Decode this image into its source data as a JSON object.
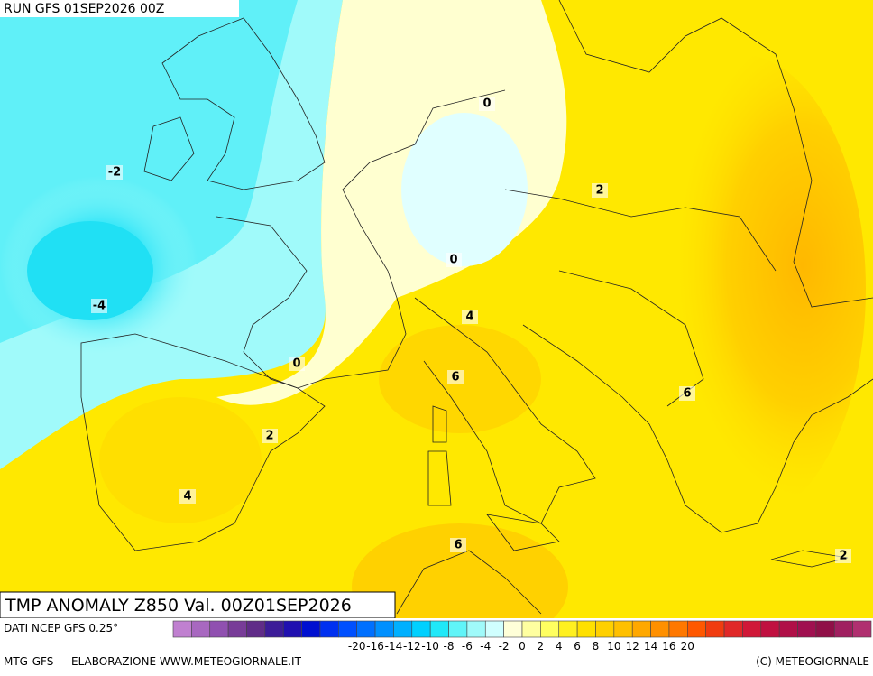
{
  "header": {
    "run": "RUN GFS 01SEP2026 00Z"
  },
  "map": {
    "title": "TMP ANOMALY Z850 Val. 00Z01SEP2026",
    "contour_labels": [
      -2,
      -4,
      0,
      0,
      0,
      2,
      2,
      4,
      4,
      6,
      6,
      6,
      2
    ]
  },
  "colorbar": {
    "source": "DATI NCEP GFS 0.25°",
    "colors": [
      "#c080d0",
      "#a868c0",
      "#9050b0",
      "#783c98",
      "#602c88",
      "#3c1c98",
      "#2010b0",
      "#0010d0",
      "#0030f0",
      "#0050ff",
      "#0070ff",
      "#0090ff",
      "#00b0ff",
      "#00d0ff",
      "#20e8f8",
      "#60f4f8",
      "#a0fafa",
      "#d0ffff",
      "#ffffd8",
      "#ffffa0",
      "#ffff60",
      "#fff020",
      "#ffe000",
      "#ffd000",
      "#ffc000",
      "#ffa800",
      "#ff9000",
      "#ff7800",
      "#ff5800",
      "#f03c10",
      "#e02828",
      "#d01838",
      "#c01040",
      "#b01048",
      "#a01050",
      "#901048",
      "#a02060",
      "#b03070"
    ],
    "ticks": [
      -20,
      -16,
      -14,
      -12,
      -10,
      -8,
      -6,
      -4,
      -2,
      0,
      2,
      4,
      6,
      8,
      10,
      12,
      14,
      16,
      20
    ]
  },
  "footer": {
    "left": "MTG-GFS — ELABORAZIONE WWW.METEOGIORNALE.IT",
    "right": "(C) METEOGIORNALE"
  }
}
